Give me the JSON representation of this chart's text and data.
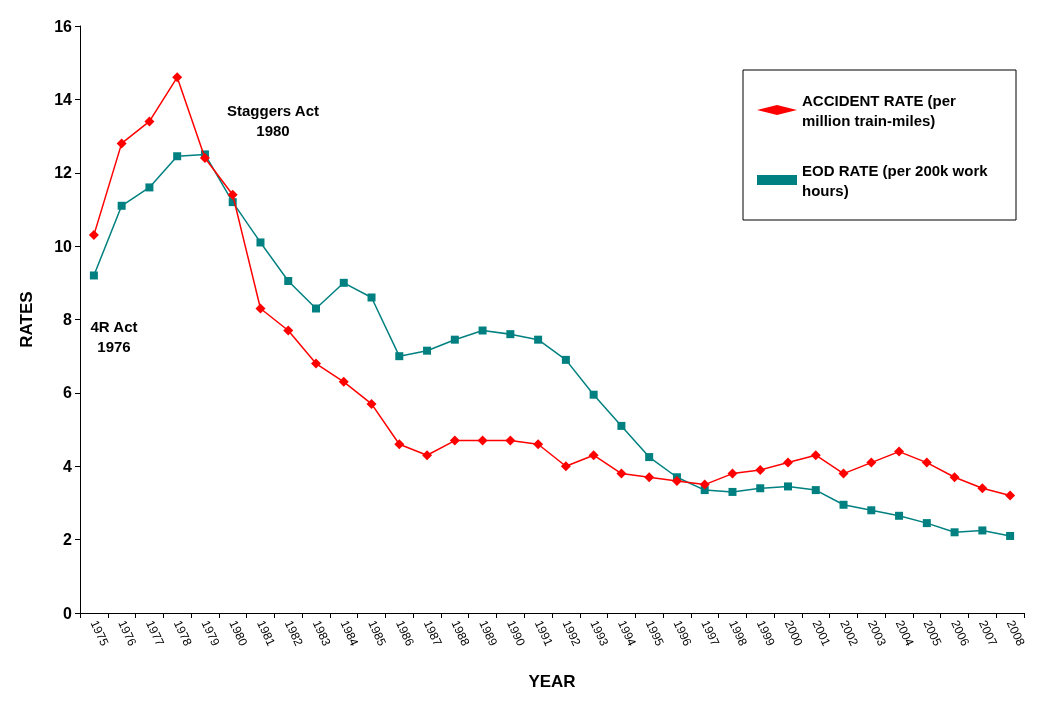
{
  "chart_data": {
    "type": "line",
    "xlabel": "YEAR",
    "ylabel": "RATES",
    "categories": [
      "1975",
      "1976",
      "1977",
      "1978",
      "1979",
      "1980",
      "1981",
      "1982",
      "1983",
      "1984",
      "1985",
      "1986",
      "1987",
      "1988",
      "1989",
      "1990",
      "1991",
      "1992",
      "1993",
      "1994",
      "1995",
      "1996",
      "1997",
      "1998",
      "1999",
      "2000",
      "2001",
      "2002",
      "2003",
      "2004",
      "2005",
      "2006",
      "2007",
      "2008"
    ],
    "series": [
      {
        "name": "ACCIDENT RATE (per million train-miles)",
        "color": "#ff0000",
        "marker": "diamond",
        "values": [
          10.3,
          12.8,
          13.4,
          14.6,
          12.4,
          11.4,
          8.3,
          7.7,
          6.8,
          6.3,
          5.7,
          4.6,
          4.3,
          4.7,
          4.7,
          4.7,
          4.6,
          4.0,
          4.3,
          3.8,
          3.7,
          3.6,
          3.5,
          3.8,
          3.9,
          4.1,
          4.3,
          3.8,
          4.1,
          4.4,
          4.1,
          3.7,
          3.4,
          3.2
        ]
      },
      {
        "name": "EOD RATE (per 200k work hours)",
        "color": "#008080",
        "marker": "square",
        "values": [
          9.2,
          11.1,
          11.6,
          12.45,
          12.5,
          11.2,
          10.1,
          9.05,
          8.3,
          9.0,
          8.6,
          7.0,
          7.15,
          7.45,
          7.7,
          7.6,
          7.45,
          6.9,
          5.95,
          5.1,
          4.25,
          3.7,
          3.35,
          3.3,
          3.4,
          3.45,
          3.35,
          2.95,
          2.8,
          2.65,
          2.45,
          2.2,
          2.25,
          2.1
        ]
      }
    ],
    "ylim": [
      0,
      16
    ],
    "yticks": [
      0,
      2,
      4,
      6,
      8,
      10,
      12,
      14,
      16
    ],
    "grid": false,
    "legend": "top right",
    "line_style": "solid",
    "annotations": [
      "Staggers Act\n1980",
      "4R Act\n1976"
    ]
  }
}
